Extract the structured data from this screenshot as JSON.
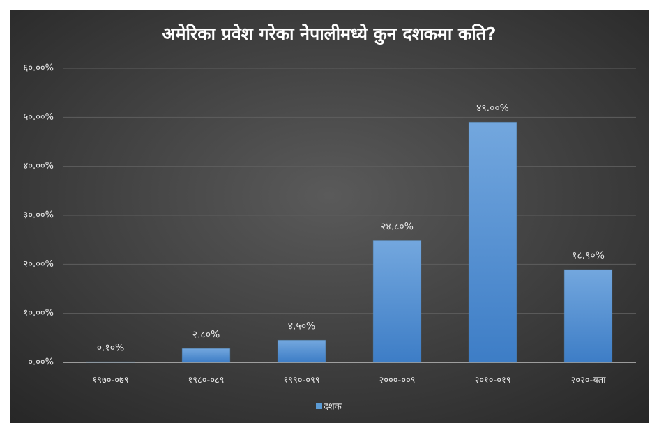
{
  "chart_data": {
    "type": "bar",
    "title": "अमेरिका प्रवेश गरेका नेपालीमध्ये कुन दशकमा कति?",
    "categories": [
      "१९७०-०७९",
      "१९८०-०८९",
      "१९९०-०९९",
      "२०००-००९",
      "२०१०-०१९",
      "२०२०-यता"
    ],
    "series": [
      {
        "name": "दशक",
        "color": "#5b9bd5",
        "values": [
          0.1,
          2.8,
          4.5,
          24.8,
          49.0,
          18.9
        ],
        "value_labels": [
          "०.१०%",
          "२.८०%",
          "४.५०%",
          "२४.८०%",
          "४९.००%",
          "१८.९०%"
        ]
      }
    ],
    "ylim": [
      0,
      60
    ],
    "yticks": [
      {
        "value": 0,
        "label": "०.००%"
      },
      {
        "value": 10,
        "label": "१०.००%"
      },
      {
        "value": 20,
        "label": "२०.००%"
      },
      {
        "value": 30,
        "label": "३०.००%"
      },
      {
        "value": 40,
        "label": "४०.००%"
      },
      {
        "value": 50,
        "label": "५०.००%"
      },
      {
        "value": 60,
        "label": "६०.००%"
      }
    ],
    "grid": true,
    "legend": "bottom"
  }
}
